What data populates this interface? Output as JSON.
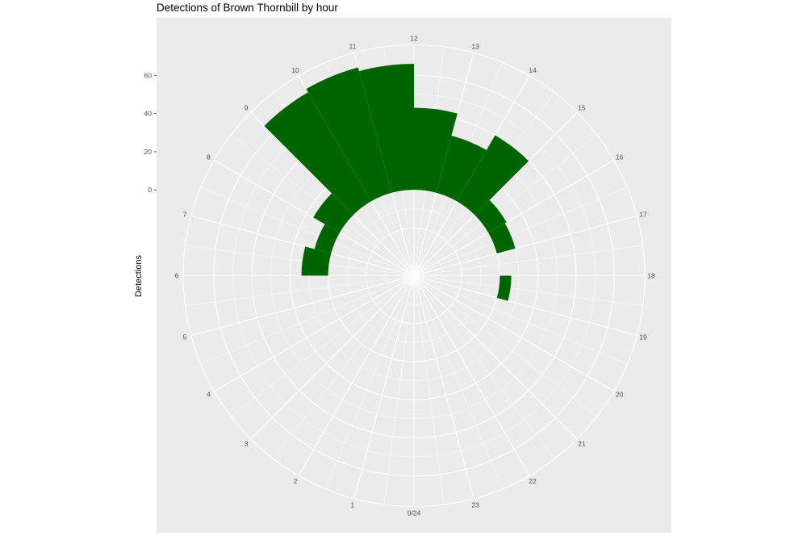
{
  "chart_data": {
    "type": "bar",
    "polar": true,
    "title": "Detections of Brown Thornbill by hour",
    "xlabel": "",
    "ylabel": "Detections",
    "categories": [
      0,
      1,
      2,
      3,
      4,
      5,
      6,
      7,
      8,
      9,
      10,
      11,
      12,
      13,
      14,
      15,
      16,
      17,
      18,
      19,
      20,
      21,
      22,
      23
    ],
    "hour_labels": [
      "0/24",
      "1",
      "2",
      "3",
      "4",
      "5",
      "6",
      "7",
      "8",
      "9",
      "10",
      "11",
      "12",
      "13",
      "14",
      "15",
      "16",
      "17",
      "18",
      "19",
      "20",
      "21",
      "22",
      "23"
    ],
    "values": [
      0,
      0,
      0,
      0,
      0,
      0,
      14,
      9,
      16,
      66,
      68,
      66,
      43,
      31,
      40,
      11,
      10,
      0,
      6,
      0,
      0,
      0,
      0,
      0
    ],
    "ylim": [
      -45,
      76
    ],
    "y_ticks": [
      0,
      20,
      40,
      60
    ],
    "bar_color": "#006400",
    "panel_background": "#ebebeb",
    "grid": true
  }
}
